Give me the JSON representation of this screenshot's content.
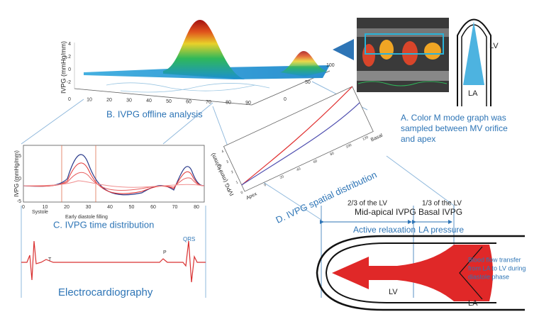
{
  "panel_a": {
    "caption_lines": [
      "A. Color M mode graph was",
      "sampled between MV orifice",
      "and apex"
    ],
    "lv_label": "LV",
    "la_label": "LA"
  },
  "panel_b": {
    "caption": "B. IVPG offline analysis",
    "axis_label": "IVPG (mmHg/mm)",
    "z_ticks": [
      4,
      2,
      0,
      -2
    ],
    "x_ticks": [
      0,
      10,
      20,
      30,
      40,
      50,
      60,
      70,
      80,
      90
    ],
    "depth_ticks": [
      0,
      50,
      100
    ]
  },
  "panel_c": {
    "caption": "C. IVPG time distribution",
    "axis_label": "IVPG (mmHg/mm)",
    "y_ticks": [
      5,
      0,
      -5
    ],
    "x_ticks": [
      0,
      10,
      20,
      30,
      40,
      50,
      60,
      70,
      80
    ],
    "phase_labels": [
      "Systole",
      "Early diastole filling"
    ]
  },
  "ecg": {
    "title": "Electrocardiography",
    "wave_labels": [
      "T",
      "P",
      "QRS"
    ]
  },
  "panel_d": {
    "caption": "D. IVPG spatial distribution",
    "axis_label": "IVPG (mmHg/mm)",
    "y_ticks": [
      0,
      1,
      2,
      3,
      4
    ],
    "x_ticks": [
      0,
      20,
      40,
      60,
      80,
      100,
      120
    ],
    "end_labels": [
      "Apex",
      "Basal"
    ]
  },
  "lv_diagram": {
    "segments": [
      {
        "fraction": "2/3 of the LV",
        "name": "Mid-apical IVPG",
        "driver": "Active relaxation"
      },
      {
        "fraction": "1/3 of the LV",
        "name": "Basal IVPG",
        "driver": "LA pressure"
      }
    ],
    "flow_note_lines": [
      "Blood flow transfer",
      "from LA to LV during",
      "diastole phase"
    ],
    "lv_label": "LV",
    "la_label": "LA"
  }
}
